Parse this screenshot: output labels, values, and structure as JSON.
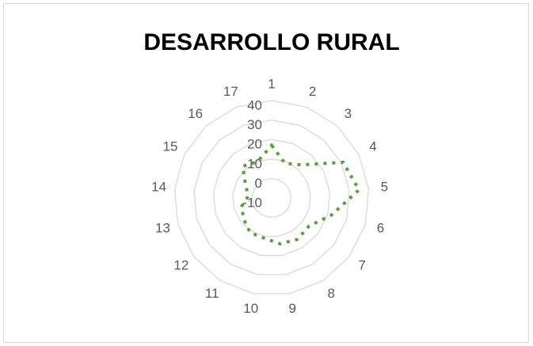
{
  "chart_data": {
    "type": "radar",
    "title": "DESARROLLO RURAL",
    "categories": [
      "1",
      "2",
      "3",
      "4",
      "5",
      "6",
      "7",
      "8",
      "9",
      "10",
      "11",
      "12",
      "13",
      "14",
      "15",
      "16",
      "17"
    ],
    "series": [
      {
        "color": "#5b9e3f",
        "values": [
          17,
          9,
          13,
          31,
          35,
          22,
          14,
          15,
          14,
          11,
          11,
          8,
          6,
          2,
          5,
          12,
          10
        ]
      }
    ],
    "ylim": [
      -10,
      40
    ],
    "yticks": [
      -10,
      0,
      10,
      20,
      30,
      40
    ],
    "grid": true
  }
}
